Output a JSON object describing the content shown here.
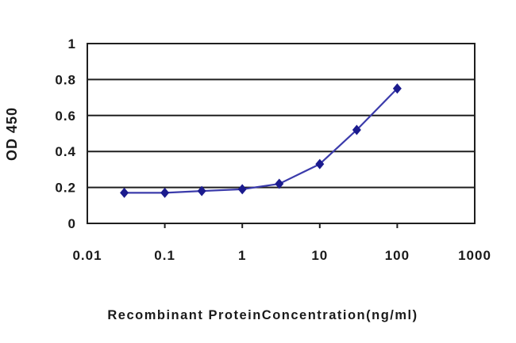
{
  "chart_data": {
    "type": "line",
    "title": "",
    "xlabel": "Recombinant ProteinConcentration(ng/ml)",
    "ylabel": "OD 450",
    "x_scale": "log",
    "x": [
      0.03,
      0.1,
      0.3,
      1,
      3,
      10,
      30,
      100
    ],
    "y": [
      0.17,
      0.17,
      0.18,
      0.19,
      0.22,
      0.33,
      0.52,
      0.75
    ],
    "series_name": "OD 450",
    "x_ticks": [
      0.01,
      0.1,
      1,
      10,
      100,
      1000
    ],
    "x_tick_labels": [
      "0.01",
      "0.1",
      "1",
      "10",
      "100",
      "1000"
    ],
    "y_ticks": [
      0,
      0.2,
      0.4,
      0.6,
      0.8,
      1
    ],
    "y_tick_labels": [
      "0",
      "0.2",
      "0.4",
      "0.6",
      "0.8",
      "1"
    ],
    "xlim": [
      0.01,
      1000
    ],
    "ylim": [
      0,
      1
    ],
    "grid": "horizontal",
    "legend": "none",
    "marker": "diamond",
    "colors": {
      "line": "#3b3bab",
      "marker": "#1b1b8e",
      "axis": "#1f1f1f",
      "grid": "#1f1f1f",
      "text": "#1a1a1a",
      "background": "#ffffff"
    }
  }
}
